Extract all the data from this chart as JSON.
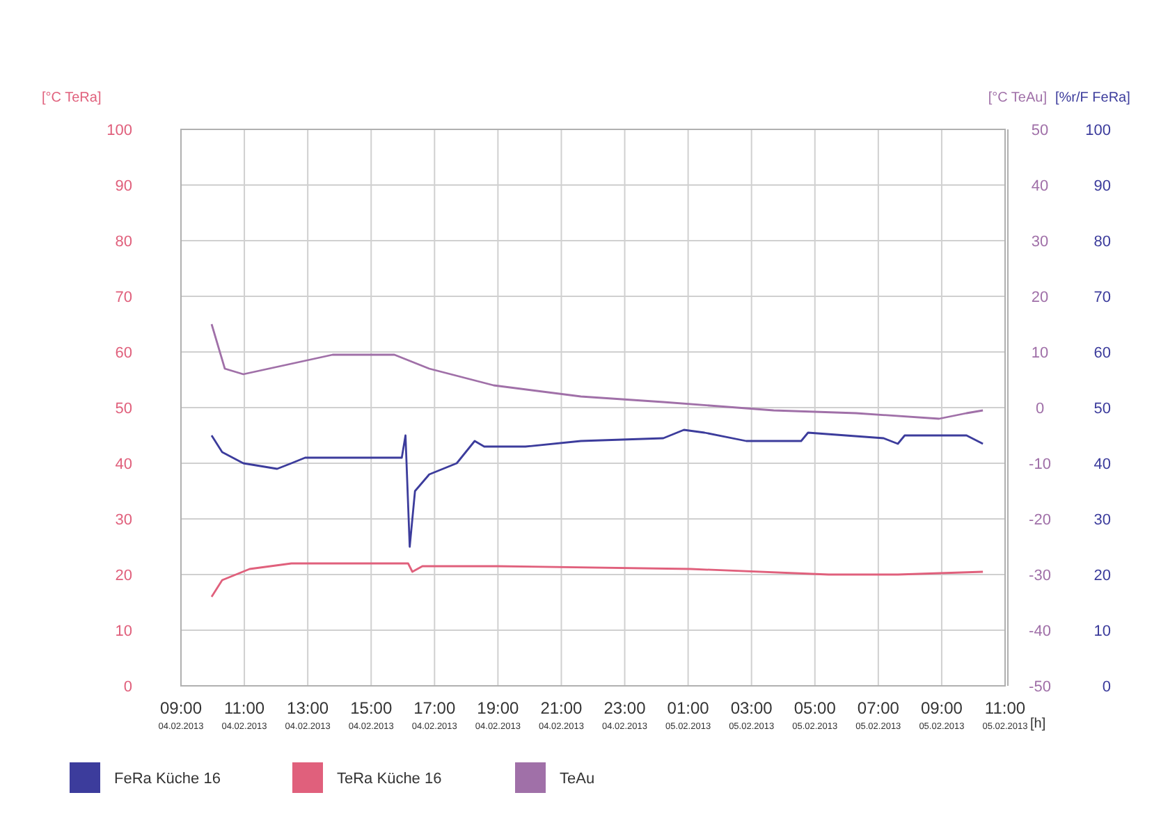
{
  "chart_data": {
    "type": "line",
    "ylabel": "[°C TeRa]",
    "y2label": "[°C TeAu]",
    "y3label": "[%r/F FeRa]",
    "xlabel": "[h]",
    "xlim": [
      "2013-02-04T09:00",
      "2013-02-05T11:00"
    ],
    "xticks": [
      {
        "value": "2013-02-04T09:00",
        "label": "09:00\n04.02.2013"
      },
      {
        "value": "2013-02-04T11:00",
        "label": "11:00\n04.02.2013"
      },
      {
        "value": "2013-02-04T13:00",
        "label": "13:00\n04.02.2013"
      },
      {
        "value": "2013-02-04T15:00",
        "label": "15:00\n04.02.2013"
      },
      {
        "value": "2013-02-04T17:00",
        "label": "17:00\n04.02.2013"
      },
      {
        "value": "2013-02-04T19:00",
        "label": "19:00\n04.02.2013"
      },
      {
        "value": "2013-02-04T21:00",
        "label": "21:00\n04.02.2013"
      },
      {
        "value": "2013-02-04T23:00",
        "label": "23:00\n04.02.2013"
      },
      {
        "value": "2013-02-05T01:00",
        "label": "01:00\n05.02.2013"
      },
      {
        "value": "2013-02-05T03:00",
        "label": "03:00\n05.02.2013"
      },
      {
        "value": "2013-02-05T05:00",
        "label": "05:00\n05.02.2013"
      },
      {
        "value": "2013-02-05T07:00",
        "label": "07:00\n05.02.2013"
      },
      {
        "value": "2013-02-05T09:00",
        "label": "09:00\n05.02.2013"
      },
      {
        "value": "2013-02-05T11:00",
        "label": "11:00\n05.02.2013"
      }
    ],
    "ylim": [
      0,
      100
    ],
    "yticks": [
      0,
      10,
      20,
      30,
      40,
      50,
      60,
      70,
      80,
      90,
      100
    ],
    "y2lim": [
      -50,
      50
    ],
    "y2ticks": [
      -50,
      -40,
      -30,
      -20,
      -10,
      0,
      10,
      20,
      30,
      40,
      50
    ],
    "y3lim": [
      0,
      100
    ],
    "y3ticks": [
      0,
      10,
      20,
      30,
      40,
      50,
      60,
      70,
      80,
      90,
      100
    ],
    "grid": true,
    "legend": "bottom",
    "marker": "none",
    "line_style": "solid",
    "series": [
      {
        "name": "FeRa Küche 16",
        "color": "#3c3c9c",
        "axis": "y3",
        "x": [
          "2013-02-04T09:58",
          "2013-02-04T10:18",
          "2013-02-04T10:58",
          "2013-02-04T12:02",
          "2013-02-04T12:29",
          "2013-02-04T12:55",
          "2013-02-04T15:58",
          "2013-02-04T16:05",
          "2013-02-04T16:13",
          "2013-02-04T16:23",
          "2013-02-04T16:50",
          "2013-02-04T17:42",
          "2013-02-04T18:16",
          "2013-02-04T18:34",
          "2013-02-04T19:52",
          "2013-02-04T21:37",
          "2013-02-05T00:13",
          "2013-02-05T00:52",
          "2013-02-05T01:31",
          "2013-02-05T02:50",
          "2013-02-05T04:34",
          "2013-02-05T04:47",
          "2013-02-05T07:10",
          "2013-02-05T07:37",
          "2013-02-05T07:50",
          "2013-02-05T08:42",
          "2013-02-05T09:47",
          "2013-02-05T10:18"
        ],
        "values": [
          45,
          42,
          40,
          39,
          40,
          41,
          41,
          45,
          25,
          35,
          38,
          40,
          44,
          43,
          43,
          44,
          44.5,
          46,
          45.5,
          44,
          44,
          45.5,
          44.5,
          43.5,
          45,
          45,
          45,
          43.5
        ]
      },
      {
        "name": "TeRa Küche 16",
        "color": "#e0607c",
        "x": [
          "2013-02-04T09:58",
          "2013-02-04T10:18",
          "2013-02-04T11:10",
          "2013-02-04T12:29",
          "2013-02-04T13:47",
          "2013-02-04T16:10",
          "2013-02-04T16:18",
          "2013-02-04T16:37",
          "2013-02-04T19:00",
          "2013-02-05T01:05",
          "2013-02-05T05:26",
          "2013-02-05T07:37",
          "2013-02-05T10:18"
        ],
        "values": [
          16,
          19,
          21,
          22,
          22,
          22,
          20.5,
          21.5,
          21.5,
          21,
          20,
          20,
          20.5
        ]
      },
      {
        "name": "TeAu",
        "color": "#a070a8",
        "axis": "y2",
        "x": [
          "2013-02-04T09:58",
          "2013-02-04T10:23",
          "2013-02-04T10:58",
          "2013-02-04T13:47",
          "2013-02-04T15:44",
          "2013-02-04T16:50",
          "2013-02-04T18:52",
          "2013-02-04T21:37",
          "2013-02-05T00:13",
          "2013-02-05T03:42",
          "2013-02-05T06:18",
          "2013-02-05T08:55",
          "2013-02-05T09:47",
          "2013-02-05T10:18"
        ],
        "values": [
          15,
          7,
          6,
          9.5,
          9.5,
          7,
          4,
          2,
          1,
          -0.5,
          -1,
          -2,
          -1,
          -0.5
        ]
      }
    ]
  }
}
